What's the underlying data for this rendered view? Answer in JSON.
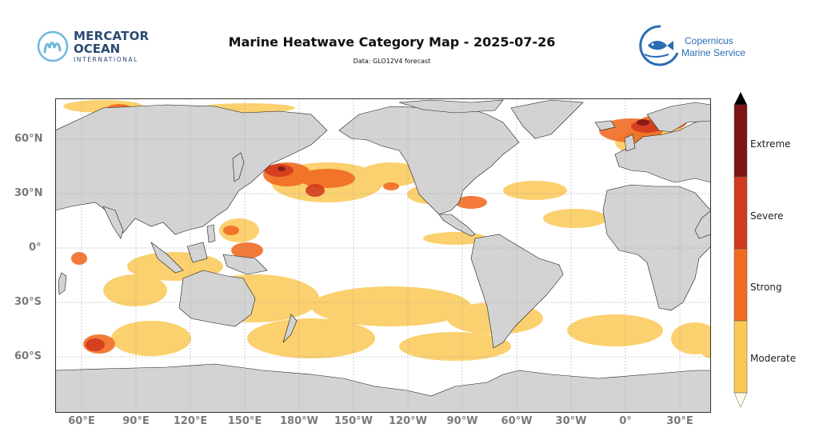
{
  "header": {
    "title": "Marine Heatwave Category Map - 2025-07-26",
    "subtitle": "Data: GLO12V4 forecast"
  },
  "logos": {
    "mercator": {
      "line1": "MERCATOR",
      "line2": "OCEAN",
      "line3": "INTERNATIONAL",
      "icon": "mercator-m-icon",
      "color": "#2b4a73",
      "accent": "#6fb7de"
    },
    "copernicus": {
      "line1": "Copernicus",
      "line2": "Marine Service",
      "icon": "fish-icon",
      "color": "#2a6db3"
    }
  },
  "map": {
    "projection": "plate-carree",
    "lat_labels": [
      "60°N",
      "30°N",
      "0°",
      "30°S",
      "60°S"
    ],
    "lon_labels": [
      "60°E",
      "90°E",
      "120°E",
      "150°E",
      "180°W",
      "150°W",
      "120°W",
      "90°W",
      "60°W",
      "30°W",
      "0°",
      "30°E"
    ],
    "land_color": "#d3d3d3",
    "ocean_color": "#ffffff",
    "gridlines": true
  },
  "legend": {
    "categories": [
      {
        "label": "Extreme",
        "color": "#7b1414"
      },
      {
        "label": "Severe",
        "color": "#d13a1d"
      },
      {
        "label": "Strong",
        "color": "#f26b22"
      },
      {
        "label": "Moderate",
        "color": "#fbc855"
      }
    ],
    "extend": "max",
    "extend_color": "#000000"
  }
}
